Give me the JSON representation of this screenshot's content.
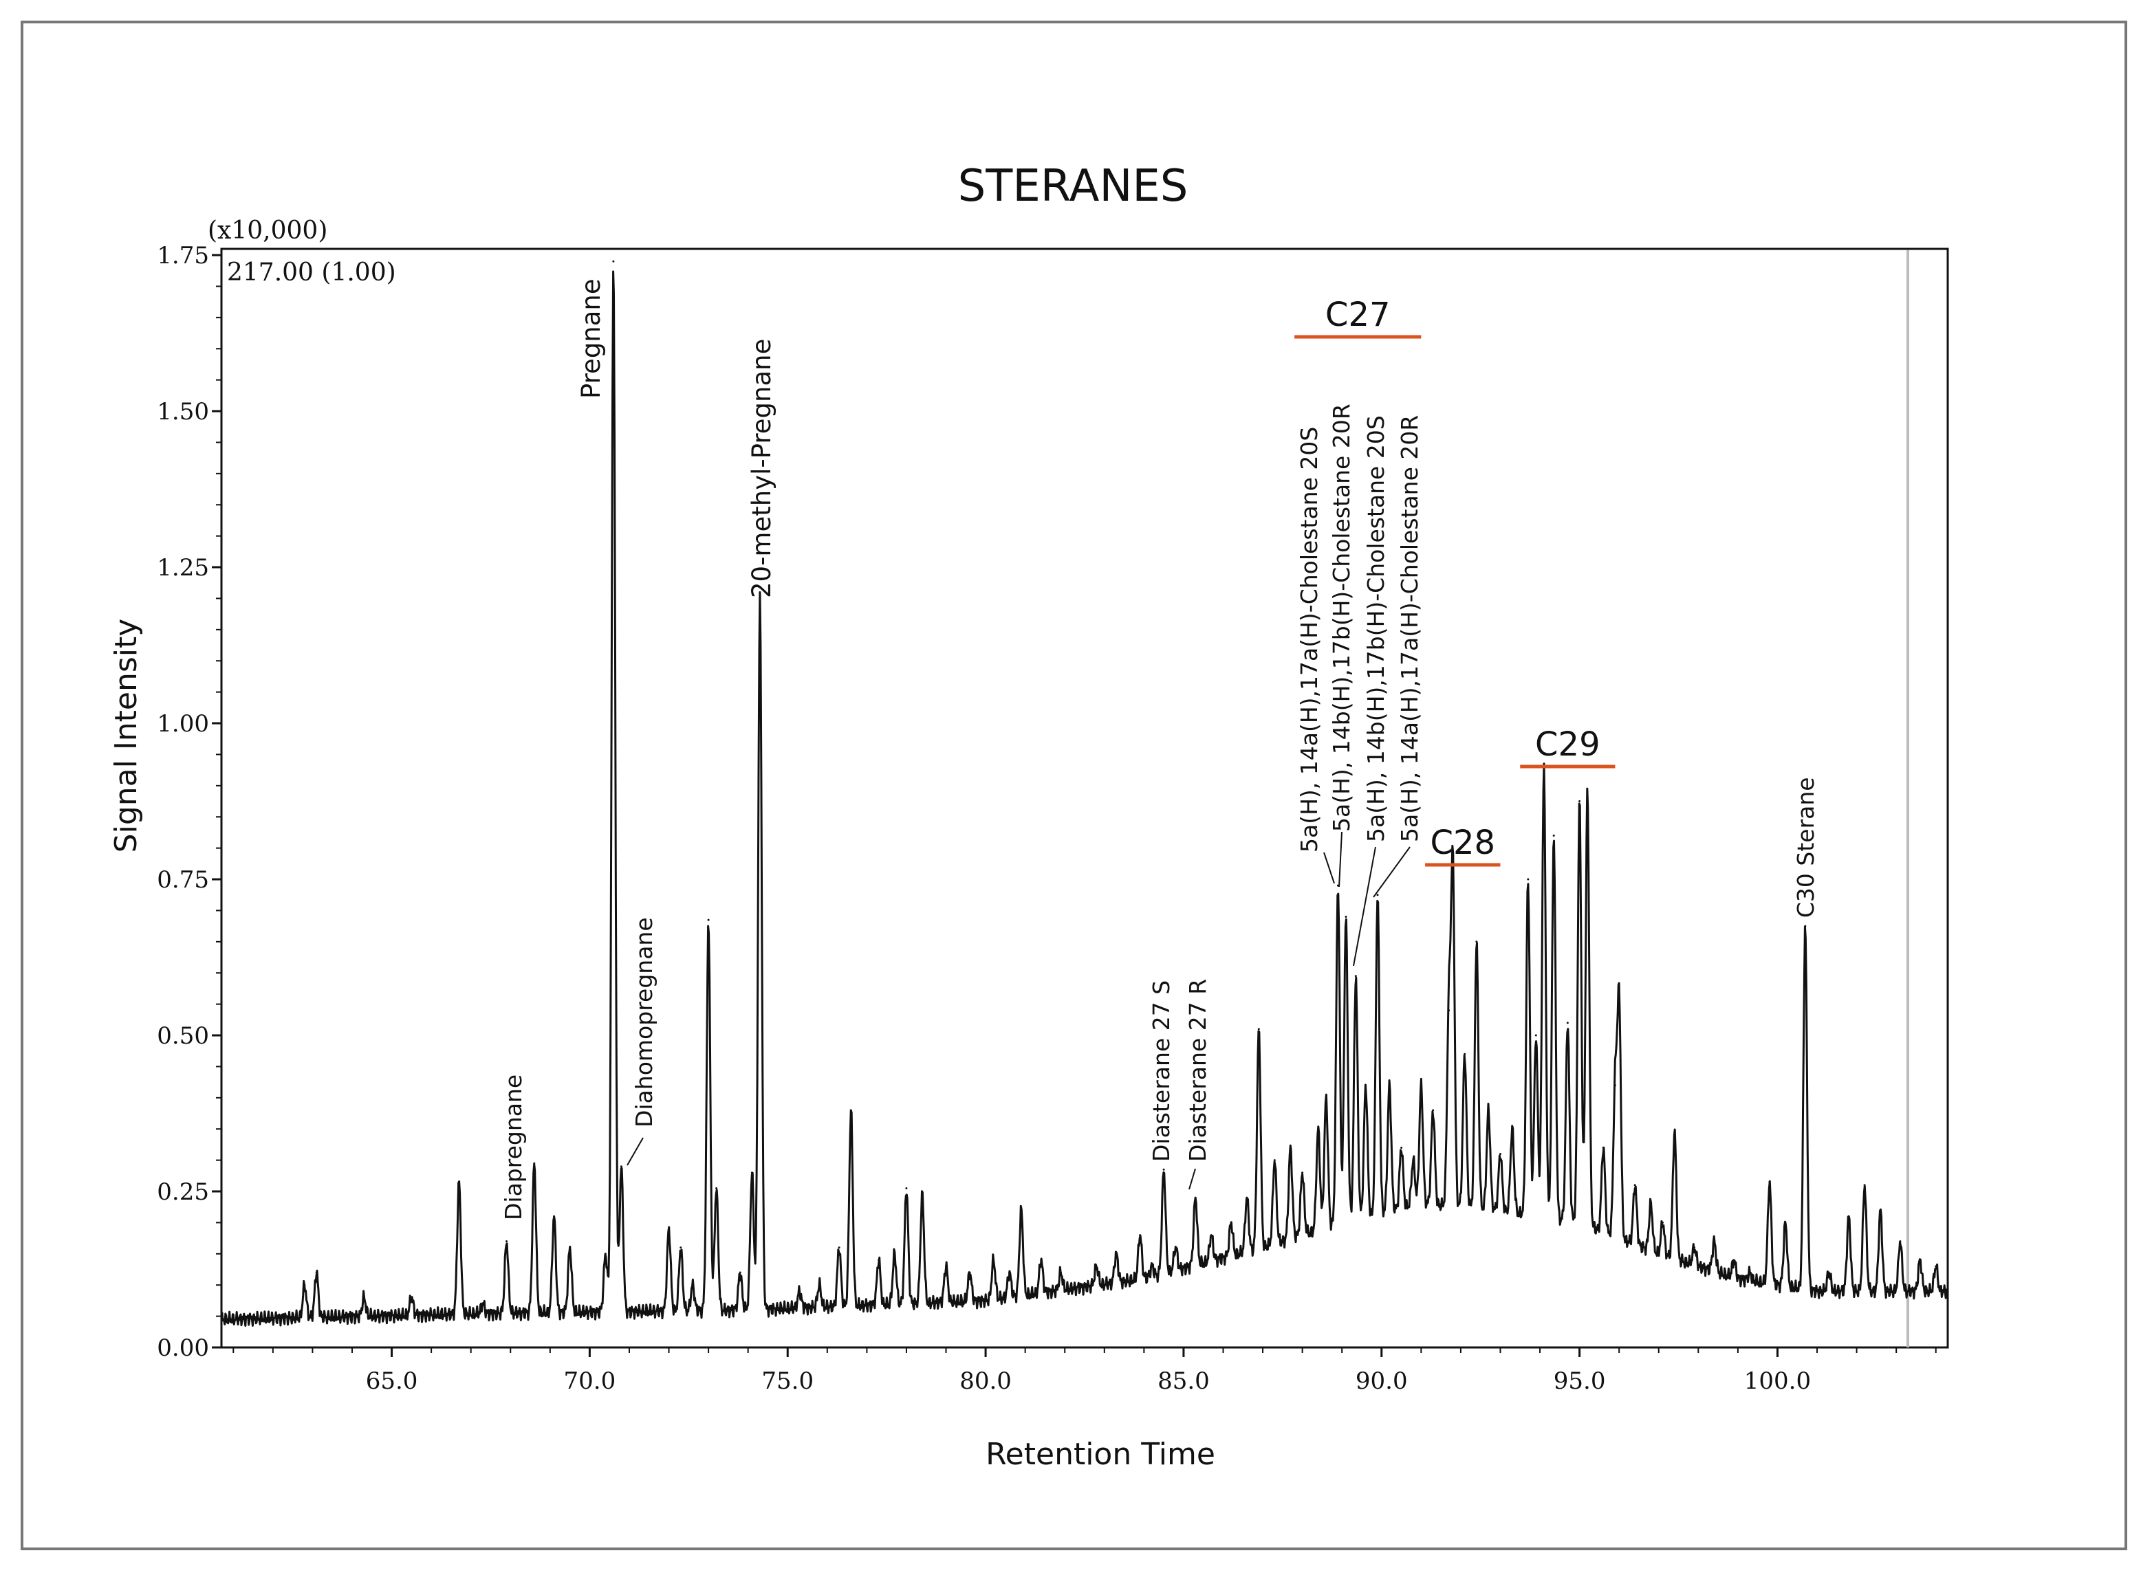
{
  "chart_data": {
    "type": "line",
    "title": "STERANES",
    "xlabel": "Retention Time",
    "ylabel": "Signal Intensity",
    "y_multiplier_label": "(x10,000)",
    "ion_label": "217.00 (1.00)",
    "xlim": [
      60.7,
      104.3
    ],
    "ylim": [
      0,
      1.76
    ],
    "x_ticks": [
      65.0,
      70.0,
      75.0,
      80.0,
      85.0,
      90.0,
      95.0,
      100.0
    ],
    "x_tick_labels": [
      "65.0",
      "70.0",
      "75.0",
      "80.0",
      "85.0",
      "90.0",
      "95.0",
      "100.0"
    ],
    "y_ticks": [
      0.0,
      0.25,
      0.5,
      0.75,
      1.0,
      1.25,
      1.5,
      1.75
    ],
    "y_tick_labels": [
      "0.00",
      "0.25",
      "0.50",
      "0.75",
      "1.00",
      "1.25",
      "1.50",
      "1.75"
    ],
    "grid": false,
    "baseline": [
      [
        60.7,
        0.045
      ],
      [
        68,
        0.055
      ],
      [
        74,
        0.06
      ],
      [
        80,
        0.075
      ],
      [
        84,
        0.11
      ],
      [
        87,
        0.16
      ],
      [
        89,
        0.2
      ],
      [
        91,
        0.23
      ],
      [
        93,
        0.22
      ],
      [
        95,
        0.2
      ],
      [
        97,
        0.15
      ],
      [
        99,
        0.11
      ],
      [
        101,
        0.09
      ],
      [
        104.3,
        0.09
      ]
    ],
    "peaks": [
      [
        62.8,
        0.1
      ],
      [
        63.1,
        0.12
      ],
      [
        64.3,
        0.08
      ],
      [
        65.5,
        0.08
      ],
      [
        66.7,
        0.265
      ],
      [
        67.3,
        0.07
      ],
      [
        67.9,
        0.17
      ],
      [
        68.6,
        0.295
      ],
      [
        69.1,
        0.21
      ],
      [
        69.5,
        0.16
      ],
      [
        70.4,
        0.15
      ],
      [
        70.6,
        1.74
      ],
      [
        70.8,
        0.29
      ],
      [
        72.0,
        0.19
      ],
      [
        72.3,
        0.16
      ],
      [
        72.6,
        0.1
      ],
      [
        73.0,
        0.685
      ],
      [
        73.2,
        0.255
      ],
      [
        73.8,
        0.12
      ],
      [
        74.1,
        0.28
      ],
      [
        74.3,
        1.2
      ],
      [
        75.3,
        0.09
      ],
      [
        75.8,
        0.1
      ],
      [
        76.3,
        0.16
      ],
      [
        76.6,
        0.38
      ],
      [
        77.3,
        0.14
      ],
      [
        77.7,
        0.15
      ],
      [
        78.0,
        0.255
      ],
      [
        78.4,
        0.245
      ],
      [
        79.0,
        0.13
      ],
      [
        79.6,
        0.12
      ],
      [
        80.2,
        0.14
      ],
      [
        80.6,
        0.12
      ],
      [
        80.9,
        0.22
      ],
      [
        81.4,
        0.14
      ],
      [
        81.9,
        0.12
      ],
      [
        82.8,
        0.13
      ],
      [
        83.3,
        0.15
      ],
      [
        83.9,
        0.18
      ],
      [
        84.2,
        0.13
      ],
      [
        84.5,
        0.285
      ],
      [
        84.8,
        0.16
      ],
      [
        85.3,
        0.24
      ],
      [
        85.7,
        0.18
      ],
      [
        86.2,
        0.2
      ],
      [
        86.6,
        0.24
      ],
      [
        86.9,
        0.51
      ],
      [
        87.3,
        0.3
      ],
      [
        87.7,
        0.32
      ],
      [
        88.0,
        0.28
      ],
      [
        88.4,
        0.35
      ],
      [
        88.6,
        0.4
      ],
      [
        88.9,
        0.74
      ],
      [
        89.1,
        0.69
      ],
      [
        89.35,
        0.595
      ],
      [
        89.6,
        0.42
      ],
      [
        89.9,
        0.725
      ],
      [
        90.2,
        0.42
      ],
      [
        90.5,
        0.32
      ],
      [
        90.8,
        0.3
      ],
      [
        91.0,
        0.42
      ],
      [
        91.3,
        0.38
      ],
      [
        91.7,
        0.54
      ],
      [
        91.8,
        0.77
      ],
      [
        92.1,
        0.47
      ],
      [
        92.4,
        0.65
      ],
      [
        92.7,
        0.38
      ],
      [
        93.0,
        0.31
      ],
      [
        93.3,
        0.35
      ],
      [
        93.7,
        0.75
      ],
      [
        93.9,
        0.5
      ],
      [
        94.1,
        0.93
      ],
      [
        94.35,
        0.82
      ],
      [
        94.7,
        0.52
      ],
      [
        95.0,
        0.875
      ],
      [
        95.2,
        0.89
      ],
      [
        95.6,
        0.32
      ],
      [
        95.9,
        0.42
      ],
      [
        96.0,
        0.555
      ],
      [
        96.4,
        0.26
      ],
      [
        96.8,
        0.23
      ],
      [
        97.1,
        0.2
      ],
      [
        97.4,
        0.345
      ],
      [
        97.9,
        0.16
      ],
      [
        98.4,
        0.17
      ],
      [
        98.9,
        0.14
      ],
      [
        99.3,
        0.12
      ],
      [
        99.8,
        0.265
      ],
      [
        100.2,
        0.2
      ],
      [
        100.7,
        0.675
      ],
      [
        101.3,
        0.12
      ],
      [
        101.8,
        0.21
      ],
      [
        102.2,
        0.26
      ],
      [
        102.6,
        0.22
      ],
      [
        103.1,
        0.17
      ],
      [
        103.6,
        0.14
      ],
      [
        104.0,
        0.13
      ]
    ],
    "annotations": [
      {
        "text": "Diapregnane",
        "x": 67.9
      },
      {
        "text": "Pregnane",
        "x": 70.6
      },
      {
        "text": "Diahomopregnane",
        "x": 70.8
      },
      {
        "text": "20-methyl-Pregnane",
        "x": 74.3
      },
      {
        "text": "Diasterane 27 S",
        "x": 84.5
      },
      {
        "text": "Diasterane 27 R",
        "x": 85.3
      },
      {
        "text": "5a(H), 14a(H),17a(H)-Cholestane 20S",
        "x": 88.9
      },
      {
        "text": "5a(H), 14b(H),17b(H)-Cholestane 20R",
        "x": 89.1
      },
      {
        "text": "5a(H), 14b(H),17b(H)-Cholestane 20S",
        "x": 89.35
      },
      {
        "text": "5a(H), 14a(H),17a(H)-Cholestane 20R",
        "x": 89.9
      },
      {
        "text": "C30 Sterane",
        "x": 100.7
      }
    ],
    "groups": [
      {
        "label": "C27",
        "x_range": [
          87.8,
          91.0
        ]
      },
      {
        "label": "C28",
        "x_range": [
          91.1,
          93.0
        ]
      },
      {
        "label": "C29",
        "x_range": [
          93.5,
          95.9
        ]
      }
    ],
    "colors": {
      "trace": "#111111",
      "group_bar": "#d9541e",
      "frame": "#777777",
      "end_marker": "#bbbbbb"
    }
  }
}
